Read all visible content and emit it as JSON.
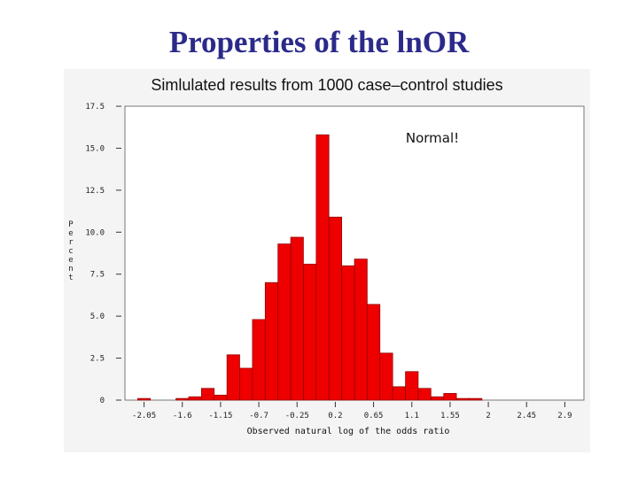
{
  "slide": {
    "title": "Properties of the lnOR"
  },
  "chart_data": {
    "type": "bar",
    "title": "Simlulated results from 1000 case–control studies",
    "xlabel": "Observed natural log of the odds ratio",
    "ylabel": "Percent",
    "annotation": "Normal!",
    "ylim": [
      0,
      17.5
    ],
    "xlim": [
      -2.275,
      3.125
    ],
    "bin_width": 0.15,
    "y_ticks": [
      "0",
      "2.5",
      "5.0",
      "7.5",
      "10.0",
      "12.5",
      "15.0",
      "17.5"
    ],
    "x_ticks": [
      "-2.05",
      "-1.6",
      "-1.15",
      "-0.7",
      "-0.25",
      "0.2",
      "0.65",
      "1.1",
      "1.55",
      "2",
      "2.45",
      "2.9"
    ],
    "bar_color": "#ee0000",
    "bins": [
      {
        "center": -2.05,
        "value": 0.1
      },
      {
        "center": -1.6,
        "value": 0.1
      },
      {
        "center": -1.45,
        "value": 0.2
      },
      {
        "center": -1.3,
        "value": 0.7
      },
      {
        "center": -1.15,
        "value": 0.3
      },
      {
        "center": -1.0,
        "value": 2.7
      },
      {
        "center": -0.85,
        "value": 1.9
      },
      {
        "center": -0.7,
        "value": 4.8
      },
      {
        "center": -0.55,
        "value": 7.0
      },
      {
        "center": -0.4,
        "value": 9.3
      },
      {
        "center": -0.25,
        "value": 9.7
      },
      {
        "center": -0.1,
        "value": 8.1
      },
      {
        "center": 0.05,
        "value": 15.8
      },
      {
        "center": 0.2,
        "value": 10.9
      },
      {
        "center": 0.35,
        "value": 8.0
      },
      {
        "center": 0.5,
        "value": 8.4
      },
      {
        "center": 0.65,
        "value": 5.7
      },
      {
        "center": 0.8,
        "value": 2.8
      },
      {
        "center": 0.95,
        "value": 0.8
      },
      {
        "center": 1.1,
        "value": 1.7
      },
      {
        "center": 1.25,
        "value": 0.7
      },
      {
        "center": 1.4,
        "value": 0.2
      },
      {
        "center": 1.55,
        "value": 0.4
      },
      {
        "center": 1.7,
        "value": 0.1
      },
      {
        "center": 1.85,
        "value": 0.1
      }
    ]
  }
}
